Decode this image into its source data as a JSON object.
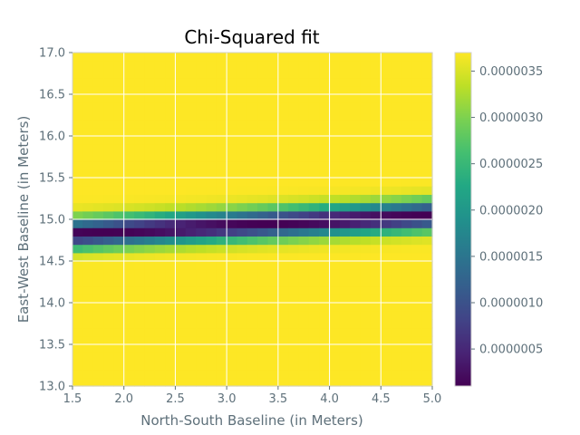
{
  "chart_data": {
    "type": "heatmap",
    "title": "Chi-Squared fit",
    "xlabel": "North-South Baseline (in Meters)",
    "ylabel": "East-West Baseline (in Meters)",
    "xlim": [
      1.5,
      5.0
    ],
    "ylim": [
      13.0,
      17.0
    ],
    "x_ticks": [
      "1.5",
      "2.0",
      "2.5",
      "3.0",
      "3.5",
      "4.0",
      "4.5",
      "5.0"
    ],
    "y_ticks": [
      "13.0",
      "13.5",
      "14.0",
      "14.5",
      "15.0",
      "15.5",
      "16.0",
      "16.5",
      "17.0"
    ],
    "colormap": "viridis",
    "color_range": [
      1e-07,
      3.7e-06
    ],
    "colorbar_ticks": [
      "0.0000005",
      "0.0000010",
      "0.0000015",
      "0.0000020",
      "0.0000025",
      "0.0000030",
      "0.0000035"
    ],
    "grid": true,
    "grid_color": "#ffffff",
    "background_value": 3.7e-06,
    "valley": {
      "description": "minimum of chi-squared lies along a line",
      "start": [
        1.5,
        14.83
      ],
      "end": [
        5.0,
        15.05
      ],
      "min_value": 1e-07
    }
  },
  "colors": {
    "axis_text": "#5e707a",
    "spine": "#d0d0d0",
    "grid": "#ffffff"
  }
}
